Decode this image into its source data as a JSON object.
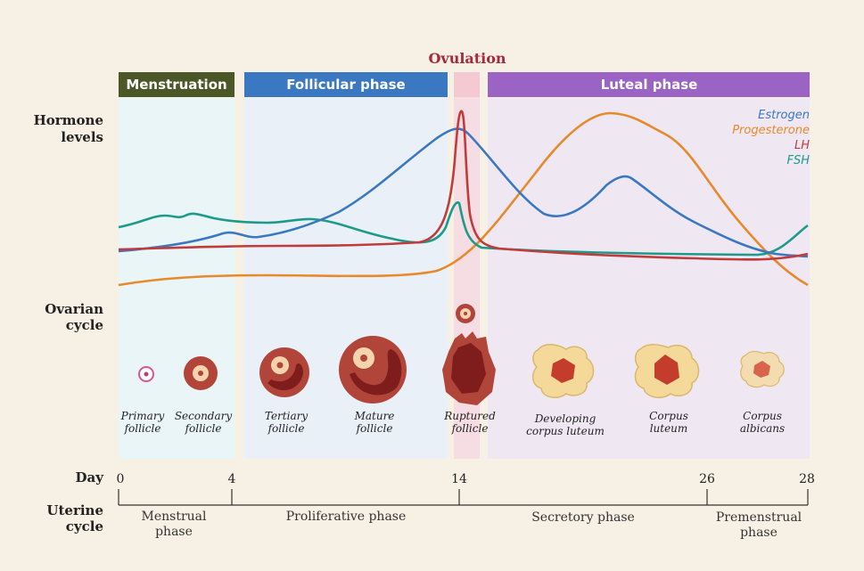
{
  "header": {
    "ovulation": "Ovulation"
  },
  "phases": [
    "Menstruation",
    "Follicular phase",
    "Luteal phase"
  ],
  "row_labels": {
    "hormones": {
      "lines": [
        "Hormone",
        "levels"
      ]
    },
    "ovarian": {
      "lines": [
        "Ovarian",
        "cycle"
      ]
    },
    "day": "Day",
    "uterine": {
      "lines": [
        "Uterine",
        "cycle"
      ]
    }
  },
  "legend": [
    "Estrogen",
    "Progesterone",
    "LH",
    "FSH"
  ],
  "ovarian_stages": [
    {
      "lines": [
        "Primary",
        "follicle"
      ]
    },
    {
      "lines": [
        "Secondary",
        "follicle"
      ]
    },
    {
      "lines": [
        "Tertiary",
        "follicle"
      ]
    },
    {
      "lines": [
        "Mature",
        "follicle"
      ]
    },
    {
      "lines": [
        "Ruptured",
        "follicle"
      ]
    },
    {
      "lines": [
        "Developing",
        "corpus luteum"
      ]
    },
    {
      "lines": [
        "Corpus",
        "luteum"
      ]
    },
    {
      "lines": [
        "Corpus",
        "albicans"
      ]
    }
  ],
  "days": [
    "0",
    "4",
    "14",
    "26",
    "28"
  ],
  "uterine_phases": [
    {
      "lines": [
        "Menstrual",
        "phase"
      ]
    },
    {
      "lines": [
        "Proliferative phase"
      ]
    },
    {
      "lines": [
        "Secretory phase"
      ]
    },
    {
      "lines": [
        "Premenstrual",
        "phase"
      ]
    }
  ]
}
